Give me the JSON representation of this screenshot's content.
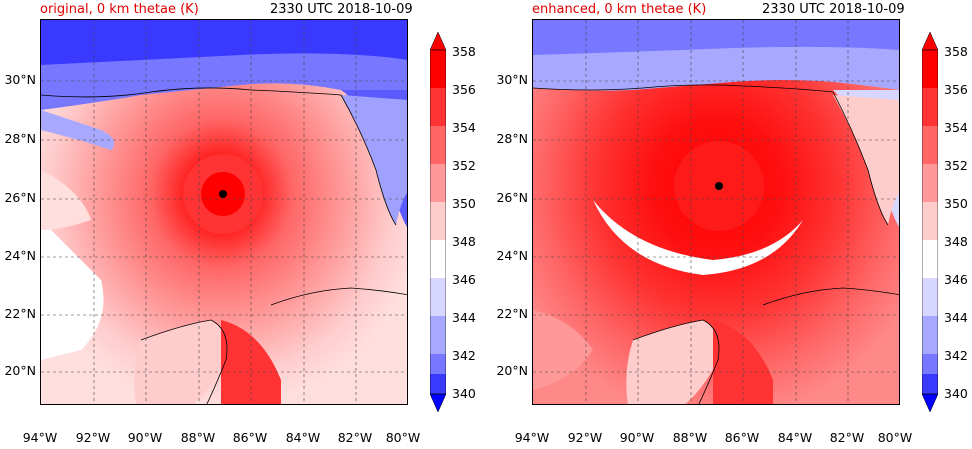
{
  "panels": [
    {
      "title": "original, 0 km thetae (K)",
      "time": "2330 UTC 2018-10-09"
    },
    {
      "title": "enhanced, 0 km thetae (K)",
      "time": "2330 UTC 2018-10-09"
    }
  ],
  "lat_ticks": [
    "30°N",
    "28°N",
    "26°N",
    "24°N",
    "22°N",
    "20°N"
  ],
  "lon_ticks": [
    "94°W",
    "92°W",
    "90°W",
    "88°W",
    "86°W",
    "84°W",
    "82°W",
    "80°W"
  ],
  "colorbar": {
    "ticks": [
      "358",
      "356",
      "354",
      "352",
      "350",
      "348",
      "346",
      "344",
      "342",
      "340"
    ],
    "colors": [
      "#0000ff",
      "#3a3aff",
      "#7777ff",
      "#a8a8ff",
      "#d6d6ff",
      "#ffffff",
      "#ffcccc",
      "#ff9999",
      "#ff6666",
      "#ff3333",
      "#ff0000"
    ]
  }
}
